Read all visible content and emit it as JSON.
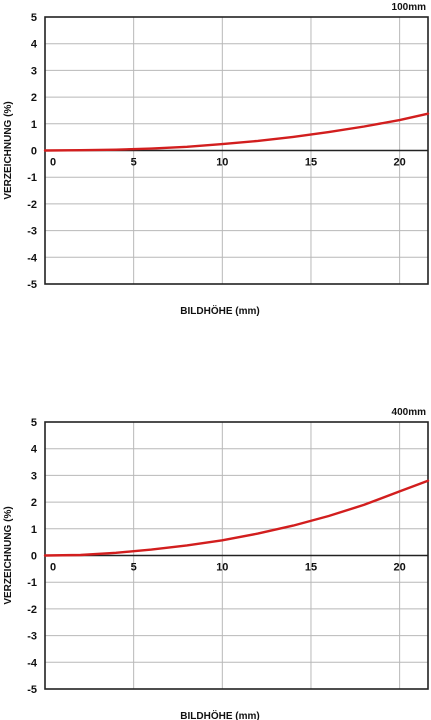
{
  "chart_data": [
    {
      "type": "line",
      "tag": "100mm",
      "xlabel": "BILDHÖHE (mm)",
      "ylabel": "VERZEICHNUNG (%)",
      "xlim": [
        0,
        21.6
      ],
      "ylim": [
        -5,
        5
      ],
      "x_ticks": [
        0,
        5,
        10,
        15,
        20
      ],
      "y_ticks": [
        5,
        4,
        3,
        2,
        1,
        0,
        -1,
        -2,
        -3,
        -4,
        -5
      ],
      "grid": true,
      "series": [
        {
          "color": "#d21e1e",
          "x": [
            0,
            2,
            4,
            6,
            8,
            10,
            12,
            14,
            16,
            18,
            20,
            21.6
          ],
          "y": [
            0,
            0.01,
            0.03,
            0.07,
            0.14,
            0.24,
            0.36,
            0.51,
            0.69,
            0.9,
            1.14,
            1.38
          ]
        }
      ]
    },
    {
      "type": "line",
      "tag": "400mm",
      "xlabel": "BILDHÖHE (mm)",
      "ylabel": "VERZEICHNUNG (%)",
      "xlim": [
        0,
        21.6
      ],
      "ylim": [
        -5,
        5
      ],
      "x_ticks": [
        0,
        5,
        10,
        15,
        20
      ],
      "y_ticks": [
        5,
        4,
        3,
        2,
        1,
        0,
        -1,
        -2,
        -3,
        -4,
        -5
      ],
      "grid": true,
      "series": [
        {
          "color": "#d21e1e",
          "x": [
            0,
            2,
            4,
            6,
            8,
            10,
            12,
            14,
            16,
            18,
            20,
            21.6
          ],
          "y": [
            0,
            0.02,
            0.1,
            0.22,
            0.38,
            0.57,
            0.82,
            1.12,
            1.48,
            1.9,
            2.4,
            2.8
          ]
        }
      ]
    }
  ]
}
